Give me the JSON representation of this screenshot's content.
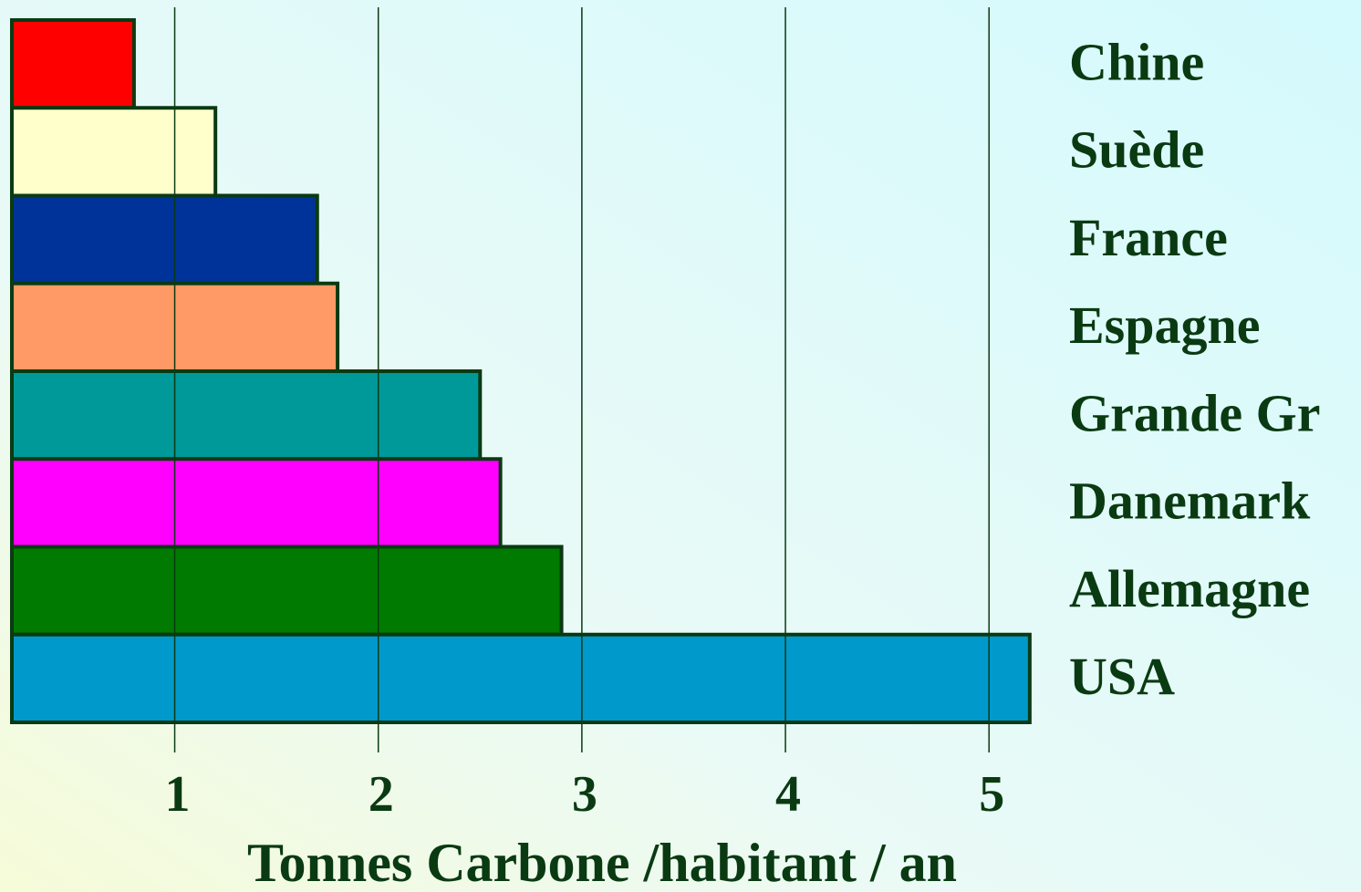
{
  "chart_data": {
    "type": "bar",
    "orientation": "horizontal",
    "x_label": "Tonnes Carbone /habitant / an",
    "categories": [
      "Chine",
      "Suède",
      "France",
      "Espagne",
      "Grande Gr",
      "Danemark",
      "Allemagne",
      "USA"
    ],
    "values": [
      0.8,
      1.2,
      1.7,
      1.8,
      2.5,
      2.6,
      2.9,
      5.2
    ],
    "colors": [
      "#ff0000",
      "#ffffcc",
      "#003399",
      "#ff9966",
      "#009999",
      "#ff00ff",
      "#007a00",
      "#0099cc"
    ],
    "xlim": [
      0.2,
      5.25
    ],
    "xticks": [
      1,
      2,
      3,
      4,
      5
    ],
    "grid": true
  }
}
